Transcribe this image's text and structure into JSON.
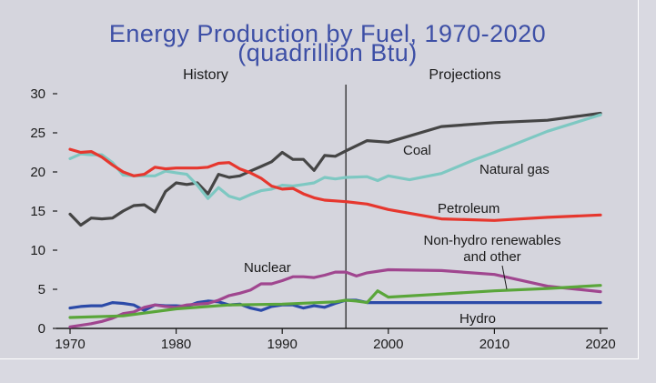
{
  "chart_data": {
    "type": "line",
    "title": "Energy Production by Fuel, 1970-2020",
    "subtitle": "(quadrillion Btu)",
    "xlim": [
      1970,
      2020
    ],
    "ylim": [
      0,
      30
    ],
    "x_ticks": [
      1970,
      1980,
      1990,
      2000,
      2010,
      2020
    ],
    "y_ticks": [
      0,
      5,
      10,
      15,
      20,
      25,
      30
    ],
    "grid": false,
    "divider_year": 1996,
    "sections": {
      "history": "History",
      "projections": "Projections"
    },
    "series": [
      {
        "name": "Coal",
        "color": "#454545",
        "x": [
          1970,
          1971,
          1972,
          1973,
          1974,
          1975,
          1976,
          1977,
          1978,
          1979,
          1980,
          1981,
          1982,
          1983,
          1984,
          1985,
          1986,
          1987,
          1988,
          1989,
          1990,
          1991,
          1992,
          1993,
          1994,
          1995,
          1996,
          1998,
          2000,
          2005,
          2010,
          2015,
          2020
        ],
        "values": [
          14.6,
          13.2,
          14.1,
          14.0,
          14.1,
          15.0,
          15.7,
          15.8,
          14.9,
          17.5,
          18.6,
          18.4,
          18.6,
          17.2,
          19.7,
          19.3,
          19.5,
          20.1,
          20.7,
          21.3,
          22.5,
          21.6,
          21.6,
          20.2,
          22.1,
          22.0,
          22.7,
          24.0,
          23.8,
          25.8,
          26.3,
          26.6,
          27.5
        ]
      },
      {
        "name": "Natural gas",
        "color": "#7ec8c2",
        "x": [
          1970,
          1971,
          1972,
          1973,
          1974,
          1975,
          1976,
          1977,
          1978,
          1979,
          1980,
          1981,
          1982,
          1983,
          1984,
          1985,
          1986,
          1987,
          1988,
          1989,
          1990,
          1991,
          1992,
          1993,
          1994,
          1995,
          1996,
          1998,
          1999,
          2000,
          2002,
          2005,
          2008,
          2010,
          2015,
          2020
        ],
        "values": [
          21.7,
          22.3,
          22.2,
          22.2,
          21.2,
          19.6,
          19.5,
          19.5,
          19.5,
          20.1,
          19.9,
          19.7,
          18.3,
          16.6,
          18.0,
          16.9,
          16.5,
          17.1,
          17.6,
          17.8,
          18.3,
          18.2,
          18.4,
          18.6,
          19.3,
          19.1,
          19.3,
          19.4,
          18.9,
          19.5,
          19.0,
          19.8,
          21.5,
          22.5,
          25.2,
          27.3
        ]
      },
      {
        "name": "Petroleum",
        "color": "#e6372e",
        "x": [
          1970,
          1971,
          1972,
          1973,
          1974,
          1975,
          1976,
          1977,
          1978,
          1979,
          1980,
          1981,
          1982,
          1983,
          1984,
          1985,
          1986,
          1987,
          1988,
          1989,
          1990,
          1991,
          1992,
          1993,
          1994,
          1995,
          1996,
          1998,
          2000,
          2005,
          2010,
          2015,
          2020
        ],
        "values": [
          22.9,
          22.5,
          22.6,
          21.9,
          20.9,
          20.0,
          19.5,
          19.7,
          20.6,
          20.4,
          20.5,
          20.5,
          20.5,
          20.6,
          21.1,
          21.2,
          20.4,
          19.9,
          19.2,
          18.2,
          17.8,
          17.9,
          17.2,
          16.7,
          16.4,
          16.3,
          16.2,
          15.9,
          15.2,
          14.0,
          13.8,
          14.2,
          14.5
        ]
      },
      {
        "name": "Hydro",
        "color": "#2b4aa8",
        "x": [
          1970,
          1971,
          1972,
          1973,
          1974,
          1975,
          1976,
          1977,
          1978,
          1979,
          1980,
          1981,
          1982,
          1983,
          1984,
          1985,
          1986,
          1987,
          1988,
          1989,
          1990,
          1991,
          1992,
          1993,
          1994,
          1995,
          1996,
          1997,
          1998,
          2000,
          2005,
          2010,
          2015,
          2020
        ],
        "values": [
          2.6,
          2.8,
          2.9,
          2.9,
          3.3,
          3.2,
          3.0,
          2.3,
          3.0,
          2.9,
          2.9,
          2.8,
          3.3,
          3.5,
          3.4,
          3.0,
          3.1,
          2.6,
          2.3,
          2.8,
          3.0,
          3.0,
          2.6,
          2.9,
          2.7,
          3.2,
          3.6,
          3.6,
          3.3,
          3.3,
          3.3,
          3.3,
          3.3,
          3.3
        ]
      },
      {
        "name": "Nuclear",
        "color": "#a0468f",
        "x": [
          1970,
          1971,
          1972,
          1973,
          1974,
          1975,
          1976,
          1977,
          1978,
          1979,
          1980,
          1981,
          1982,
          1983,
          1984,
          1985,
          1986,
          1987,
          1988,
          1989,
          1990,
          1991,
          1992,
          1993,
          1994,
          1995,
          1996,
          1997,
          1998,
          2000,
          2005,
          2010,
          2015,
          2020
        ],
        "values": [
          0.2,
          0.4,
          0.6,
          0.9,
          1.3,
          1.9,
          2.1,
          2.7,
          3.0,
          2.8,
          2.7,
          3.0,
          3.1,
          3.2,
          3.6,
          4.2,
          4.5,
          4.9,
          5.7,
          5.7,
          6.1,
          6.6,
          6.6,
          6.5,
          6.8,
          7.2,
          7.2,
          6.7,
          7.1,
          7.5,
          7.4,
          6.9,
          5.4,
          4.7
        ]
      },
      {
        "name": "Non-hydro renewables and other",
        "color": "#5aa63a",
        "x": [
          1970,
          1975,
          1980,
          1985,
          1990,
          1995,
          1996,
          1997,
          1998,
          1999,
          2000,
          2005,
          2010,
          2015,
          2020
        ],
        "values": [
          1.4,
          1.6,
          2.5,
          3.0,
          3.1,
          3.4,
          3.6,
          3.5,
          3.3,
          4.8,
          4.0,
          4.4,
          4.8,
          5.1,
          5.5
        ]
      }
    ],
    "labels": {
      "coal": "Coal",
      "natural_gas": "Natural gas",
      "petroleum": "Petroleum",
      "nuclear": "Nuclear",
      "hydro": "Hydro",
      "renewables_line1": "Non-hydro renewables",
      "renewables_line2": "and other"
    }
  }
}
